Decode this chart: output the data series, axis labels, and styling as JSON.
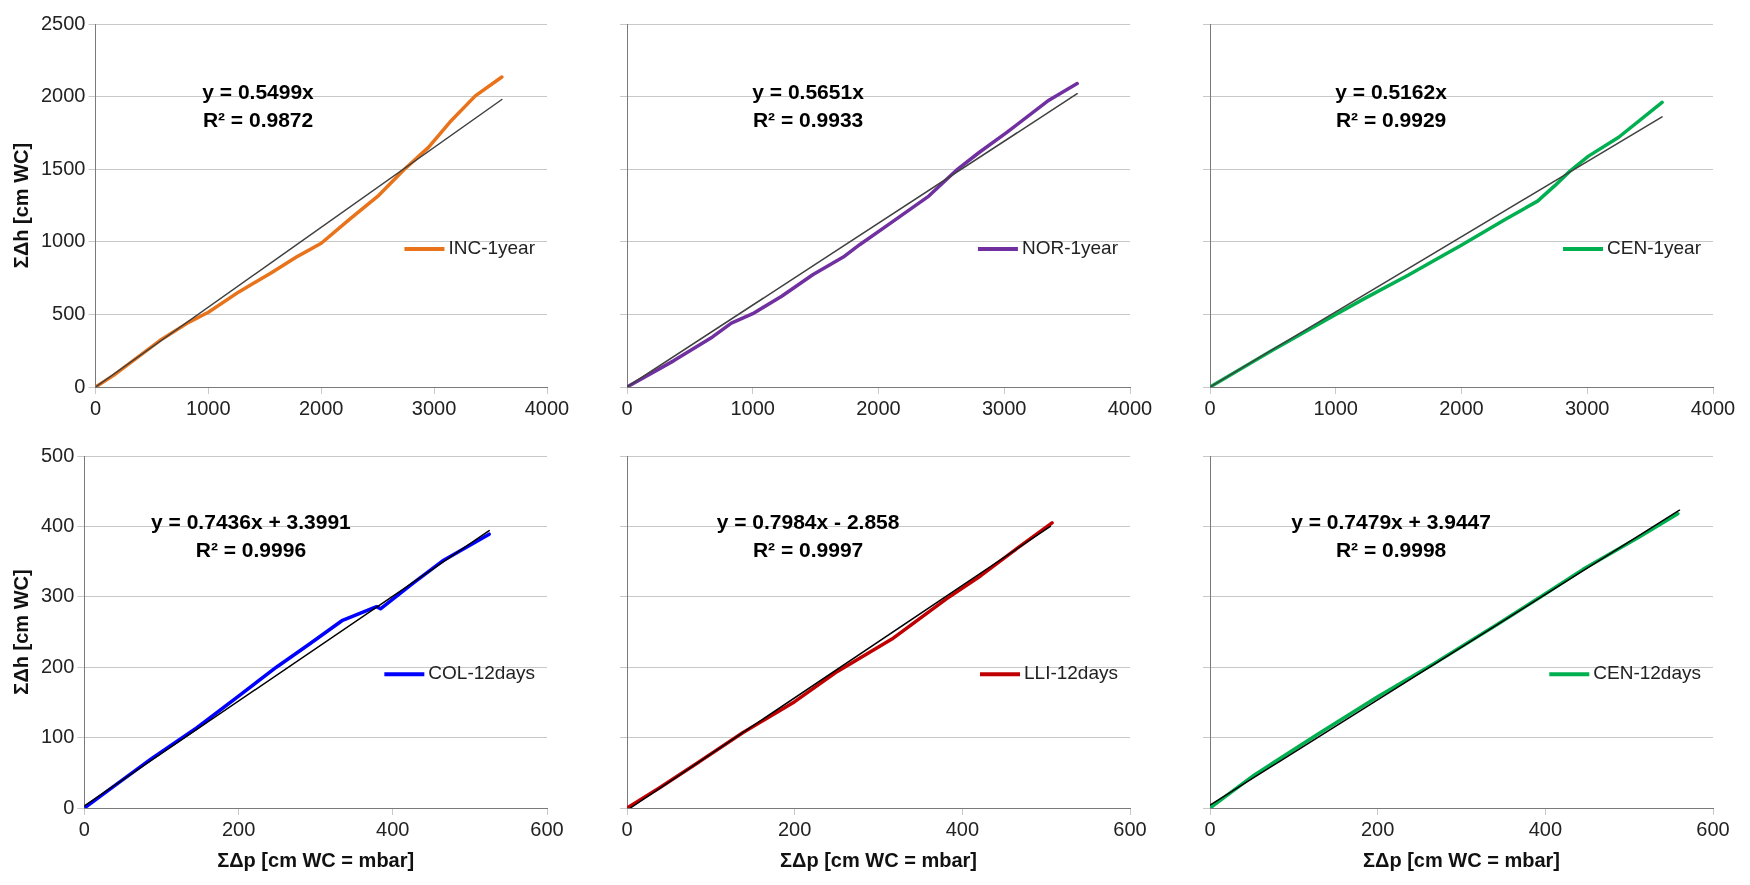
{
  "chart_data": [
    {
      "type": "line",
      "ylabel": "ΣΔh [cm WC]",
      "xlim": [
        0,
        4000
      ],
      "xticks": [
        0,
        1000,
        2000,
        3000,
        4000
      ],
      "ylim": [
        0,
        2500
      ],
      "yticks": [
        0,
        500,
        1000,
        1500,
        2000,
        2500
      ],
      "grid": "y",
      "legend": "right",
      "marker": "none",
      "annotations": [
        "y = 0.5499x",
        "R² = 0.9872"
      ],
      "series": [
        {
          "name": "INC-1year",
          "color": "#e8731a",
          "x": [
            0,
            160,
            570,
            825,
            1000,
            1270,
            1555,
            1780,
            2000,
            2250,
            2510,
            2730,
            2950,
            3140,
            3365,
            3600
          ],
          "values": [
            0,
            80,
            320,
            445,
            515,
            655,
            785,
            895,
            990,
            1155,
            1320,
            1495,
            1650,
            1825,
            2005,
            2135
          ]
        },
        {
          "type": "line",
          "color": "#404040",
          "x": [
            0,
            3600
          ],
          "values": [
            0,
            1980
          ]
        }
      ]
    },
    {
      "type": "line",
      "xlim": [
        0,
        4000
      ],
      "xticks": [
        0,
        1000,
        2000,
        3000,
        4000
      ],
      "ylim": [
        0,
        2500
      ],
      "yticks": [
        0,
        500,
        1000,
        1500,
        2000,
        2500
      ],
      "tick_labels": "x",
      "grid": "y",
      "legend": "right",
      "marker": "none",
      "annotations": [
        "y = 0.5651x",
        "R² = 0.9933"
      ],
      "series": [
        {
          "name": "NOR-1year",
          "color": "#7030a0",
          "x": [
            0,
            370,
            680,
            830,
            1000,
            1230,
            1480,
            1720,
            1850,
            2090,
            2400,
            2615,
            2800,
            3015,
            3355,
            3580
          ],
          "values": [
            0,
            180,
            345,
            440,
            505,
            625,
            775,
            895,
            980,
            1125,
            1315,
            1490,
            1615,
            1750,
            1975,
            2090
          ]
        },
        {
          "type": "line",
          "color": "#404040",
          "x": [
            0,
            3580
          ],
          "values": [
            0,
            2020
          ]
        }
      ]
    },
    {
      "type": "line",
      "xlim": [
        0,
        4000
      ],
      "xticks": [
        0,
        1000,
        2000,
        3000,
        4000
      ],
      "ylim": [
        0,
        2500
      ],
      "yticks": [
        0,
        500,
        1000,
        1500,
        2000,
        2500
      ],
      "tick_labels": "x",
      "grid": "y",
      "legend": "right",
      "marker": "none",
      "annotations": [
        "y = 0.5162x",
        "R² = 0.9929"
      ],
      "series": [
        {
          "name": "CEN-1year",
          "color": "#00b050",
          "x": [
            0,
            500,
            1000,
            1220,
            1575,
            1995,
            2350,
            2605,
            2740,
            2860,
            3010,
            3250,
            3595
          ],
          "values": [
            0,
            255,
            500,
            605,
            770,
            975,
            1155,
            1280,
            1385,
            1485,
            1590,
            1720,
            1960
          ]
        },
        {
          "type": "line",
          "color": "#404040",
          "x": [
            0,
            3595
          ],
          "values": [
            0,
            1860
          ]
        }
      ]
    },
    {
      "type": "line",
      "xlabel": "ΣΔp [cm WC = mbar]",
      "ylabel": "ΣΔh [cm WC]",
      "xlim": [
        0,
        600
      ],
      "xticks": [
        0,
        200,
        400,
        600
      ],
      "ylim": [
        0,
        500
      ],
      "yticks": [
        0,
        100,
        200,
        300,
        400,
        500
      ],
      "grid": "y",
      "legend": "right",
      "marker": "none",
      "annotations": [
        "y = 0.7436x + 3.3991",
        "R² = 0.9996"
      ],
      "series": [
        {
          "name": "COL-12days",
          "color": "#0000ff",
          "x": [
            0,
            42,
            87,
            146,
            200,
            249,
            292,
            334,
            379,
            384,
            426,
            466,
            525
          ],
          "values": [
            0,
            34,
            70,
            114,
            159,
            200,
            233,
            266,
            286,
            283,
            319,
            352,
            389
          ]
        },
        {
          "type": "line",
          "color": "#000000",
          "x": [
            0,
            525
          ],
          "values": [
            3,
            394
          ]
        }
      ]
    },
    {
      "type": "line",
      "xlabel": "ΣΔp [cm WC = mbar]",
      "xlim": [
        0,
        600
      ],
      "xticks": [
        0,
        200,
        400,
        600
      ],
      "ylim": [
        0,
        500
      ],
      "yticks": [
        0,
        100,
        200,
        300,
        400,
        500
      ],
      "tick_labels": "x",
      "grid": "y",
      "legend": "right",
      "marker": "none",
      "annotations": [
        "y = 0.7984x - 2.858",
        "R² = 0.9997"
      ],
      "series": [
        {
          "name": "LLI-12days",
          "color": "#c00000",
          "x": [
            0,
            38,
            84,
            138,
            200,
            251,
            316,
            381,
            422,
            461,
            507
          ],
          "values": [
            0,
            28,
            64,
            107,
            151,
            194,
            240,
            297,
            330,
            365,
            405
          ]
        },
        {
          "type": "line",
          "color": "#000000",
          "x": [
            4,
            505
          ],
          "values": [
            0,
            400
          ]
        }
      ]
    },
    {
      "type": "line",
      "xlabel": "ΣΔp [cm WC = mbar]",
      "xlim": [
        0,
        600
      ],
      "xticks": [
        0,
        200,
        400,
        600
      ],
      "ylim": [
        0,
        500
      ],
      "yticks": [
        0,
        100,
        200,
        300,
        400,
        500
      ],
      "tick_labels": "x",
      "grid": "y",
      "legend": "right",
      "marker": "none",
      "annotations": [
        "y = 0.7479x + 3.9447",
        "R² = 0.9998"
      ],
      "series": [
        {
          "name": "CEN-12days",
          "color": "#00b050",
          "x": [
            0,
            53,
            129,
            200,
            267,
            343,
            401,
            445,
            512,
            558
          ],
          "values": [
            0,
            47,
            105,
            158,
            205,
            261,
            305,
            339,
            385,
            418
          ]
        },
        {
          "type": "line",
          "color": "#000000",
          "x": [
            0,
            560
          ],
          "values": [
            4,
            423
          ]
        }
      ]
    }
  ]
}
